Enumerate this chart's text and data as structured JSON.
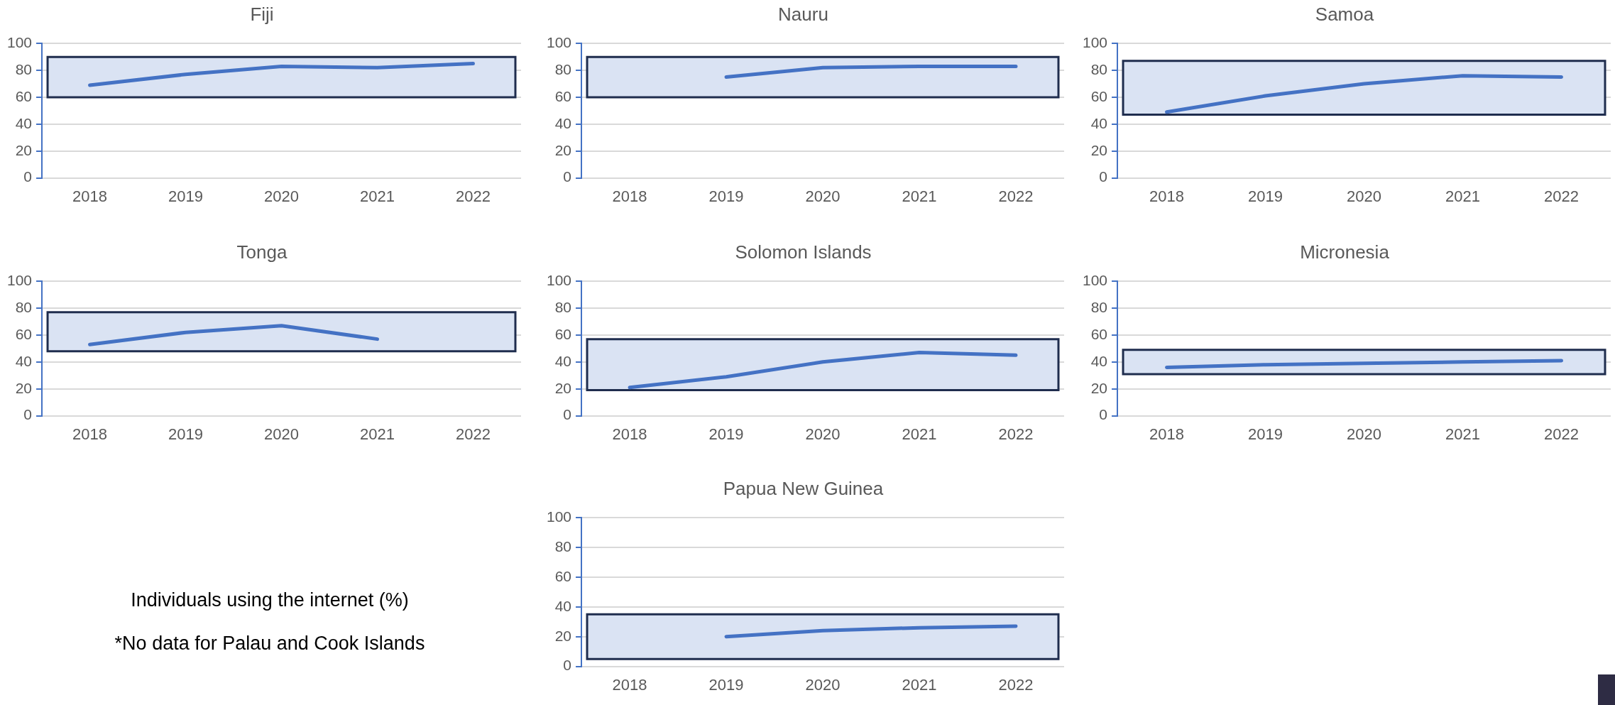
{
  "chart_data": [
    {
      "type": "line",
      "title": "Fiji",
      "categories": [
        "2018",
        "2019",
        "2020",
        "2021",
        "2022"
      ],
      "series": [
        {
          "color": "#4472c4",
          "values": [
            69,
            77,
            83,
            82,
            85
          ]
        }
      ],
      "ylim": [
        0,
        100
      ],
      "yticks": [
        0,
        20,
        40,
        60,
        80,
        100
      ],
      "grid": "y",
      "marker": "none",
      "line_style": "solid",
      "bands": [
        {
          "axis": "y",
          "from": 60,
          "to": 90,
          "color": "#dae3f3"
        }
      ]
    },
    {
      "type": "line",
      "title": "Nauru",
      "categories": [
        "2018",
        "2019",
        "2020",
        "2021",
        "2022"
      ],
      "series": [
        {
          "color": "#4472c4",
          "values": [
            null,
            75,
            82,
            83,
            83
          ]
        }
      ],
      "ylim": [
        0,
        100
      ],
      "yticks": [
        0,
        20,
        40,
        60,
        80,
        100
      ],
      "grid": "y",
      "marker": "none",
      "line_style": "solid",
      "bands": [
        {
          "axis": "y",
          "from": 60,
          "to": 90,
          "color": "#dae3f3"
        }
      ]
    },
    {
      "type": "line",
      "title": "Samoa",
      "categories": [
        "2018",
        "2019",
        "2020",
        "2021",
        "2022"
      ],
      "series": [
        {
          "color": "#4472c4",
          "values": [
            49,
            61,
            70,
            76,
            75
          ]
        }
      ],
      "ylim": [
        0,
        100
      ],
      "yticks": [
        0,
        20,
        40,
        60,
        80,
        100
      ],
      "grid": "y",
      "marker": "none",
      "line_style": "solid",
      "bands": [
        {
          "axis": "y",
          "from": 47,
          "to": 87,
          "color": "#dae3f3"
        }
      ]
    },
    {
      "type": "line",
      "title": "Tonga",
      "categories": [
        "2018",
        "2019",
        "2020",
        "2021",
        "2022"
      ],
      "series": [
        {
          "color": "#4472c4",
          "values": [
            53,
            62,
            67,
            57,
            null
          ]
        }
      ],
      "ylim": [
        0,
        100
      ],
      "yticks": [
        0,
        20,
        40,
        60,
        80,
        100
      ],
      "grid": "y",
      "marker": "none",
      "line_style": "solid",
      "bands": [
        {
          "axis": "y",
          "from": 48,
          "to": 77,
          "color": "#dae3f3"
        }
      ]
    },
    {
      "type": "line",
      "title": "Solomon Islands",
      "categories": [
        "2018",
        "2019",
        "2020",
        "2021",
        "2022"
      ],
      "series": [
        {
          "color": "#4472c4",
          "values": [
            21,
            29,
            40,
            47,
            45
          ]
        }
      ],
      "ylim": [
        0,
        100
      ],
      "yticks": [
        0,
        20,
        40,
        60,
        80,
        100
      ],
      "grid": "y",
      "marker": "none",
      "line_style": "solid",
      "bands": [
        {
          "axis": "y",
          "from": 19,
          "to": 57,
          "color": "#dae3f3"
        }
      ]
    },
    {
      "type": "line",
      "title": "Micronesia",
      "categories": [
        "2018",
        "2019",
        "2020",
        "2021",
        "2022"
      ],
      "series": [
        {
          "color": "#4472c4",
          "values": [
            36,
            38,
            39,
            40,
            41
          ]
        }
      ],
      "ylim": [
        0,
        100
      ],
      "yticks": [
        0,
        20,
        40,
        60,
        80,
        100
      ],
      "grid": "y",
      "marker": "none",
      "line_style": "solid",
      "bands": [
        {
          "axis": "y",
          "from": 31,
          "to": 49,
          "color": "#dae3f3"
        }
      ]
    },
    {
      "type": "line",
      "title": "Papua New Guinea",
      "categories": [
        "2018",
        "2019",
        "2020",
        "2021",
        "2022"
      ],
      "series": [
        {
          "color": "#4472c4",
          "values": [
            null,
            20,
            24,
            26,
            27
          ]
        }
      ],
      "ylim": [
        0,
        100
      ],
      "yticks": [
        0,
        20,
        40,
        60,
        80,
        100
      ],
      "grid": "y",
      "marker": "none",
      "line_style": "solid",
      "bands": [
        {
          "axis": "y",
          "from": 5,
          "to": 35,
          "color": "#dae3f3"
        }
      ]
    },
    {
      "type": "other",
      "annotations": [
        "Individuals using the internet (%)",
        "*No data for Palau and Cook Islands"
      ]
    }
  ]
}
